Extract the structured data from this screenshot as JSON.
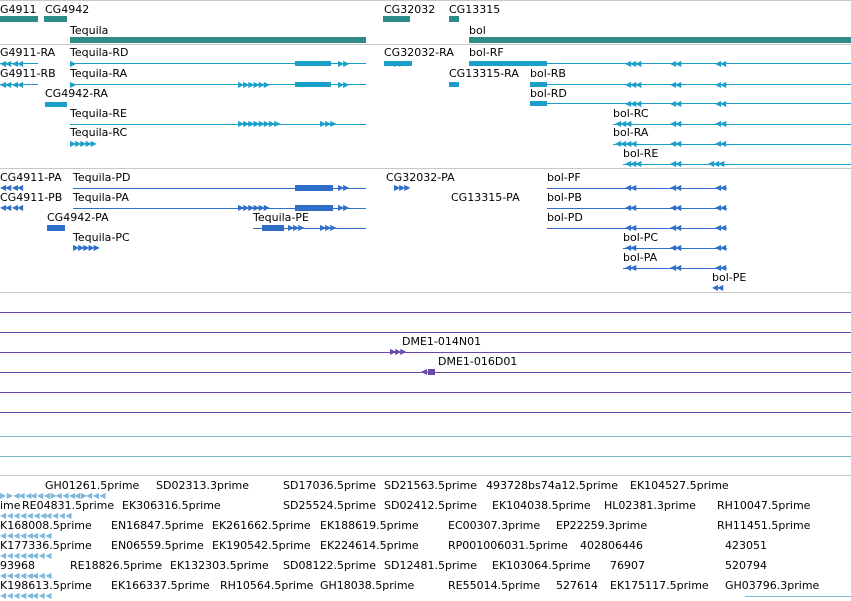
{
  "colors": {
    "gene": "#2e8b87",
    "transcript": "#1aa0c8",
    "protein": "#2f6fc8",
    "clone": "#6a4aa8",
    "est": "#7db8dc"
  },
  "genes": [
    "G4911",
    "CG4942",
    "Tequila",
    "CG32032",
    "CG13315",
    "bol"
  ],
  "transcripts": [
    "G4911-RA",
    "G4911-RB",
    "Tequila-RD",
    "Tequila-RA",
    "CG4942-RA",
    "Tequila-RE",
    "Tequila-RC",
    "CG32032-RA",
    "bol-RF",
    "CG13315-RA",
    "bol-RB",
    "bol-RD",
    "bol-RC",
    "bol-RA",
    "bol-RE"
  ],
  "proteins": [
    "CG4911-PA",
    "CG4911-PB",
    "Tequila-PD",
    "Tequila-PA",
    "CG4942-PA",
    "Tequila-PE",
    "Tequila-PC",
    "CG32032-PA",
    "CG13315-PA",
    "bol-PF",
    "bol-PB",
    "bol-PD",
    "bol-PC",
    "bol-PA",
    "bol-PE"
  ],
  "clones": [
    "DME1-014N01",
    "DME1-016D01"
  ],
  "ests": [
    "GH01261.5prime",
    "SD02313.3prime",
    "SD17036.5prime",
    "SD21563.5prime",
    "493728bs74a12.5prime",
    "EK104527.5prime",
    "ime",
    "RE04831.5prime",
    "EK306316.5prime",
    "SD25524.5prime",
    "SD02412.5prime",
    "EK104038.5prime",
    "HL02381.3prime",
    "RH10047.5prime",
    "K168008.5prime",
    "EN16847.5prime",
    "EK261662.5prime",
    "EK188619.5prime",
    "EC00307.3prime",
    "EP22259.3prime",
    "RH11451.5prime",
    "K177336.5prime",
    "EN06559.5prime",
    "EK190542.5prime",
    "EK224614.5prime",
    "RP001006031.5prime",
    "402806446",
    "423051",
    "93968",
    "RE18826.5prime",
    "EK132303.5prime",
    "SD08122.5prime",
    "SD12481.5prime",
    "EK103064.5prime",
    "76907",
    "520794",
    "K198613.5prime",
    "EK166337.5prime",
    "RH10564.5prime",
    "GH18038.5prime",
    "RE55014.5prime",
    "527614",
    "EK175117.5prime",
    "GH03796.3prime"
  ]
}
